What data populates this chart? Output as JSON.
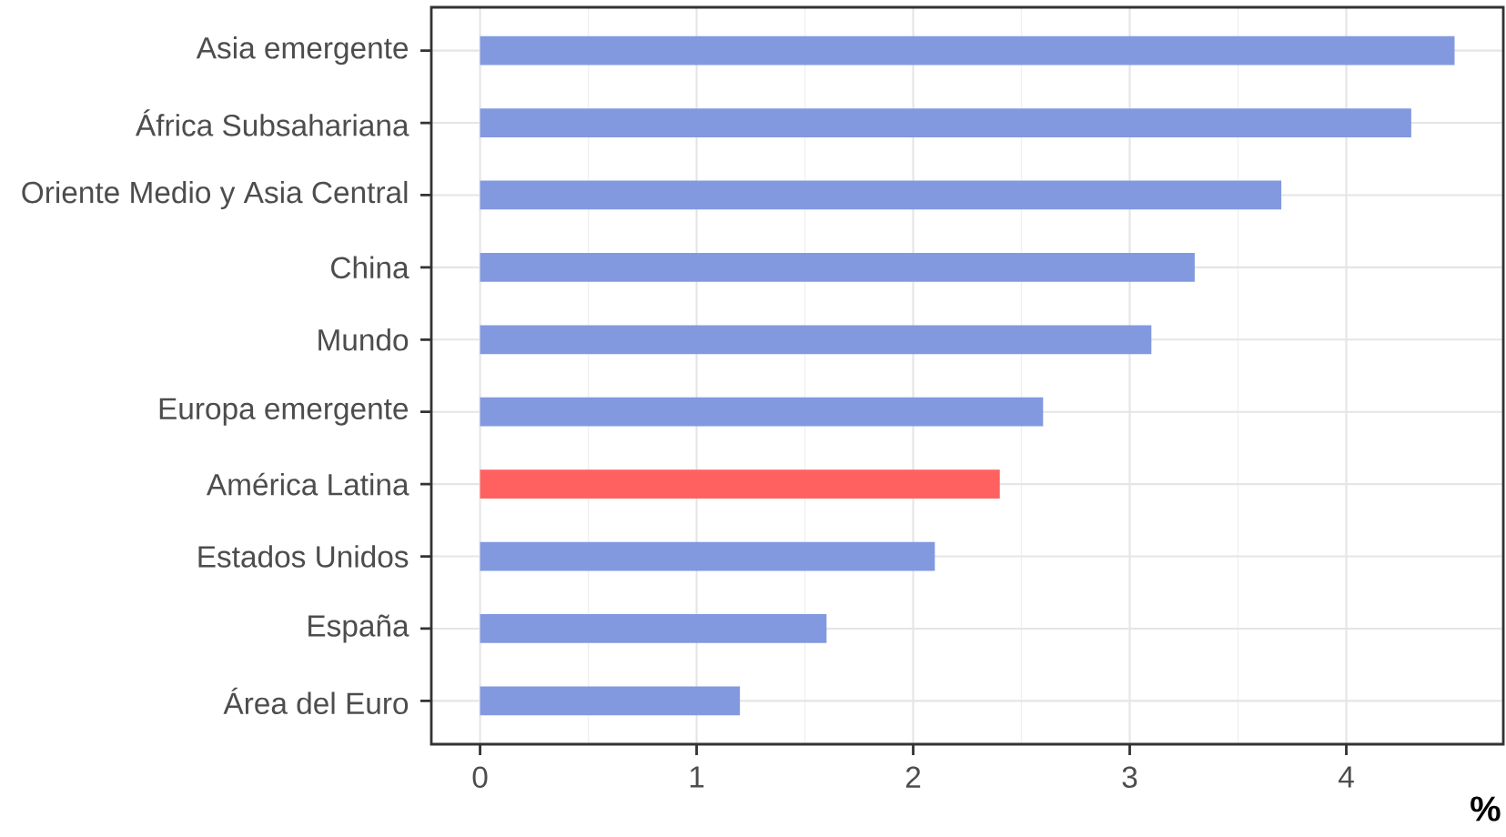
{
  "chart_data": {
    "type": "bar",
    "orientation": "horizontal",
    "xlabel": "%",
    "categories": [
      "Asia emergente",
      "África Subsahariana",
      "Oriente Medio y Asia Central",
      "China",
      "Mundo",
      "Europa emergente",
      "América Latina",
      "Estados Unidos",
      "España",
      "Área del Euro"
    ],
    "values": [
      4.5,
      4.3,
      3.7,
      3.3,
      3.1,
      2.6,
      2.4,
      2.1,
      1.6,
      1.2
    ],
    "colors": [
      "#8299e0",
      "#8299e0",
      "#8299e0",
      "#8299e0",
      "#8299e0",
      "#8299e0",
      "#ff6161",
      "#8299e0",
      "#8299e0",
      "#8299e0"
    ],
    "xlim": [
      -0.225,
      4.725
    ],
    "xticks": [
      0,
      1,
      2,
      3,
      4
    ],
    "grid": true
  }
}
